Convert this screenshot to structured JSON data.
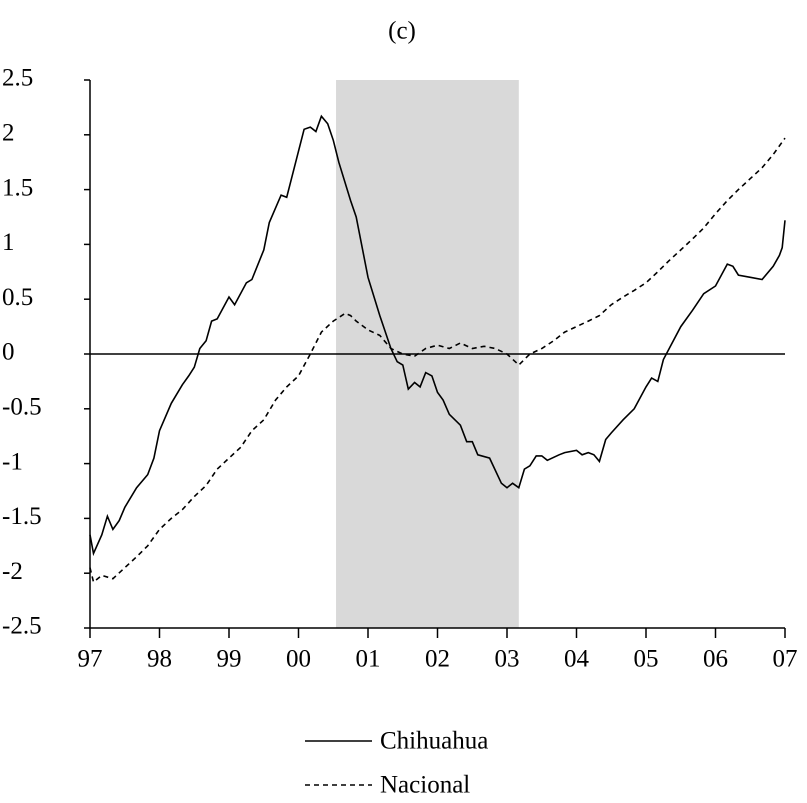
{
  "chart_data": {
    "type": "line",
    "title": "(c)",
    "xlim": [
      0,
      10
    ],
    "xticks": [
      {
        "value": 0,
        "label": "97"
      },
      {
        "value": 1,
        "label": "98"
      },
      {
        "value": 2,
        "label": "99"
      },
      {
        "value": 3,
        "label": "00"
      },
      {
        "value": 4,
        "label": "01"
      },
      {
        "value": 5,
        "label": "02"
      },
      {
        "value": 6,
        "label": "03"
      },
      {
        "value": 7,
        "label": "04"
      },
      {
        "value": 8,
        "label": "05"
      },
      {
        "value": 9,
        "label": "06"
      },
      {
        "value": 10,
        "label": "07"
      }
    ],
    "ylim": [
      -2.5,
      2.5
    ],
    "yticks": [
      -2.5,
      -2,
      -1.5,
      -1,
      -0.5,
      0,
      0.5,
      1,
      1.5,
      2,
      2.5
    ],
    "shaded_x": [
      3.54,
      6.17
    ],
    "shade_color": "#d9d9d9",
    "series": [
      {
        "name": "Chihuahua",
        "color": "#000000",
        "dash": "solid",
        "x": [
          0,
          0.05,
          0.17,
          0.25,
          0.33,
          0.42,
          0.5,
          0.67,
          0.83,
          0.92,
          1.0,
          1.17,
          1.33,
          1.42,
          1.5,
          1.58,
          1.67,
          1.75,
          1.83,
          2.0,
          2.08,
          2.25,
          2.33,
          2.5,
          2.58,
          2.75,
          2.83,
          3.0,
          3.08,
          3.17,
          3.25,
          3.33,
          3.42,
          3.5,
          3.58,
          3.75,
          3.83,
          4.0,
          4.17,
          4.33,
          4.42,
          4.5,
          4.58,
          4.67,
          4.75,
          4.83,
          4.92,
          5.0,
          5.08,
          5.17,
          5.33,
          5.42,
          5.5,
          5.58,
          5.75,
          5.92,
          6.0,
          6.08,
          6.17,
          6.25,
          6.33,
          6.42,
          6.5,
          6.58,
          6.75,
          6.83,
          7.0,
          7.08,
          7.17,
          7.25,
          7.33,
          7.42,
          7.5,
          7.67,
          7.83,
          8.0,
          8.08,
          8.17,
          8.25,
          8.5,
          8.67,
          8.83,
          9.0,
          9.17,
          9.25,
          9.33,
          9.5,
          9.67,
          9.83,
          9.92,
          9.96,
          10.0
        ],
        "values": [
          -1.65,
          -1.82,
          -1.65,
          -1.48,
          -1.6,
          -1.52,
          -1.4,
          -1.22,
          -1.1,
          -0.95,
          -0.7,
          -0.45,
          -0.28,
          -0.2,
          -0.12,
          0.05,
          0.12,
          0.3,
          0.32,
          0.52,
          0.45,
          0.65,
          0.68,
          0.95,
          1.2,
          1.45,
          1.43,
          1.85,
          2.05,
          2.07,
          2.03,
          2.17,
          2.1,
          1.95,
          1.75,
          1.4,
          1.25,
          0.7,
          0.35,
          0.05,
          -0.07,
          -0.1,
          -0.32,
          -0.26,
          -0.3,
          -0.17,
          -0.2,
          -0.35,
          -0.42,
          -0.55,
          -0.65,
          -0.8,
          -0.8,
          -0.92,
          -0.95,
          -1.18,
          -1.22,
          -1.18,
          -1.22,
          -1.05,
          -1.02,
          -0.93,
          -0.93,
          -0.97,
          -0.92,
          -0.9,
          -0.88,
          -0.92,
          -0.9,
          -0.92,
          -0.98,
          -0.78,
          -0.72,
          -0.6,
          -0.5,
          -0.3,
          -0.22,
          -0.25,
          -0.05,
          0.25,
          0.4,
          0.55,
          0.62,
          0.82,
          0.8,
          0.72,
          0.7,
          0.68,
          0.8,
          0.9,
          0.97,
          1.22
        ]
      },
      {
        "name": "Nacional",
        "color": "#000000",
        "dash": "dashed",
        "x": [
          0,
          0.05,
          0.17,
          0.33,
          0.5,
          0.67,
          0.83,
          1.0,
          1.17,
          1.33,
          1.5,
          1.67,
          1.83,
          2.0,
          2.17,
          2.33,
          2.5,
          2.67,
          2.83,
          3.0,
          3.17,
          3.33,
          3.5,
          3.67,
          3.75,
          3.83,
          4.0,
          4.17,
          4.33,
          4.5,
          4.67,
          4.83,
          5.0,
          5.17,
          5.33,
          5.5,
          5.67,
          5.83,
          6.0,
          6.17,
          6.33,
          6.5,
          6.67,
          6.83,
          7.0,
          7.17,
          7.33,
          7.5,
          7.67,
          7.83,
          8.0,
          8.17,
          8.33,
          8.5,
          8.67,
          8.83,
          9.0,
          9.17,
          9.33,
          9.5,
          9.67,
          9.83,
          10.0
        ],
        "values": [
          -1.95,
          -2.08,
          -2.02,
          -2.05,
          -1.95,
          -1.85,
          -1.75,
          -1.6,
          -1.5,
          -1.42,
          -1.3,
          -1.2,
          -1.05,
          -0.95,
          -0.85,
          -0.7,
          -0.6,
          -0.42,
          -0.3,
          -0.2,
          0.0,
          0.2,
          0.3,
          0.37,
          0.35,
          0.3,
          0.22,
          0.17,
          0.05,
          0.0,
          -0.02,
          0.05,
          0.08,
          0.05,
          0.1,
          0.05,
          0.07,
          0.05,
          0.0,
          -0.1,
          0.0,
          0.05,
          0.12,
          0.2,
          0.25,
          0.3,
          0.35,
          0.45,
          0.52,
          0.58,
          0.65,
          0.75,
          0.85,
          0.95,
          1.05,
          1.15,
          1.28,
          1.4,
          1.5,
          1.6,
          1.7,
          1.82,
          1.97
        ]
      }
    ]
  }
}
